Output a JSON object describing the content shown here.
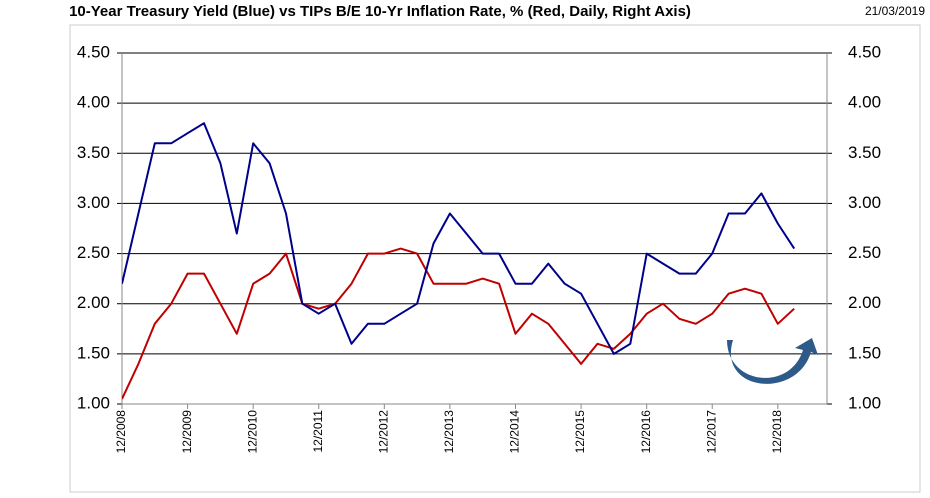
{
  "chart_data": {
    "type": "line",
    "title": "10-Year Treasury Yield (Blue) vs TIPs B/E 10-Yr Inflation Rate, % (Red, Daily, Right Axis)",
    "date": "21/03/2019",
    "categories": [
      "12/2008",
      null,
      null,
      null,
      "12/2009",
      null,
      null,
      null,
      "12/2010",
      null,
      null,
      null,
      "12/2011",
      null,
      null,
      null,
      "12/2012",
      null,
      null,
      null,
      "12/2013",
      null,
      null,
      null,
      "12/2014",
      null,
      null,
      null,
      "12/2015",
      null,
      null,
      null,
      "12/2016",
      null,
      null,
      null,
      "12/2017",
      null,
      null,
      null,
      "12/2018",
      null,
      null,
      null
    ],
    "series": [
      {
        "name": "10-Year Treasury Yield",
        "color": "#00008b",
        "axis": "y",
        "values": [
          2.2,
          2.9,
          3.6,
          3.6,
          3.7,
          3.8,
          3.4,
          2.7,
          3.6,
          3.4,
          2.9,
          2.0,
          1.9,
          2.0,
          1.6,
          1.8,
          1.8,
          1.9,
          2.0,
          2.6,
          2.9,
          2.7,
          2.5,
          2.5,
          2.2,
          2.2,
          2.4,
          2.2,
          2.1,
          1.8,
          1.5,
          1.6,
          2.5,
          2.4,
          2.3,
          2.3,
          2.5,
          2.9,
          2.9,
          3.1,
          2.8,
          2.55,
          null,
          null
        ]
      },
      {
        "name": "TIPs B/E 10-Yr Inflation Rate",
        "color": "#c00000",
        "axis": "y2",
        "values": [
          1.05,
          1.4,
          1.8,
          2.0,
          2.3,
          2.3,
          2.0,
          1.7,
          2.2,
          2.3,
          2.5,
          2.0,
          1.95,
          2.0,
          2.2,
          2.5,
          2.5,
          2.55,
          2.5,
          2.2,
          2.2,
          2.2,
          2.25,
          2.2,
          1.7,
          1.9,
          1.8,
          1.6,
          1.4,
          1.6,
          1.55,
          1.7,
          1.9,
          2.0,
          1.85,
          1.8,
          1.9,
          2.1,
          2.15,
          2.1,
          1.8,
          1.95,
          null,
          null
        ]
      }
    ],
    "ylim": [
      1,
      4.5
    ],
    "yticks": [
      {
        "value": 1,
        "label": "1.00"
      },
      {
        "value": 1.5,
        "label": "1.50"
      },
      {
        "value": 2,
        "label": "2.00"
      },
      {
        "value": 2.5,
        "label": "2.50"
      },
      {
        "value": 3,
        "label": "3.00"
      },
      {
        "value": 3.5,
        "label": "3.50"
      },
      {
        "value": 4,
        "label": "4.00"
      },
      {
        "value": 4.5,
        "label": "4.50"
      }
    ],
    "y2lim": [
      1,
      4.5
    ],
    "y2ticks": [
      {
        "value": 1,
        "label": "1.00"
      },
      {
        "value": 1.5,
        "label": "1.50"
      },
      {
        "value": 2,
        "label": "2.00"
      },
      {
        "value": 2.5,
        "label": "2.50"
      },
      {
        "value": 3,
        "label": "3.00"
      },
      {
        "value": 3.5,
        "label": "3.50"
      },
      {
        "value": 4,
        "label": "4.00"
      },
      {
        "value": 4.5,
        "label": "4.50"
      }
    ],
    "grid": true
  }
}
